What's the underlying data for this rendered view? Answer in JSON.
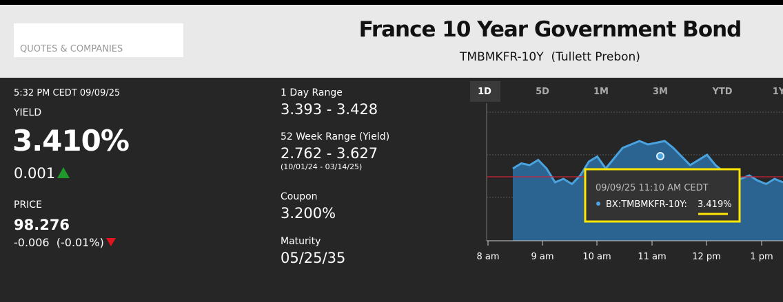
{
  "header": {
    "search_placeholder": "QUOTES & COMPANIES",
    "title": "France 10 Year Government Bond",
    "symbol": "TMBMKFR-10Y",
    "source": "(Tullett Prebon)"
  },
  "quote": {
    "timestamp": "5:32 PM CEDT 09/09/25",
    "yield_label": "YIELD",
    "yield": "3.410%",
    "yield_change": "0.001",
    "price_label": "PRICE",
    "price": "98.276",
    "price_change": "-0.006",
    "price_change_pct": "(-0.01%)"
  },
  "stats": [
    {
      "label": "1 Day Range",
      "value": "3.393 - 3.428"
    },
    {
      "label": "52 Week Range (Yield)",
      "value": "2.762 - 3.627",
      "note": "(10/01/24 - 03/14/25)"
    },
    {
      "label": "Coupon",
      "value": "3.200%"
    },
    {
      "label": "Maturity",
      "value": "05/25/35"
    }
  ],
  "chart": {
    "tabs": [
      "1D",
      "5D",
      "1M",
      "3M",
      "YTD",
      "1Y"
    ],
    "x_labels": [
      "8 am",
      "9 am",
      "10 am",
      "11 am",
      "12 pm",
      "1 pm"
    ],
    "ylim": [
      3.37,
      3.45
    ],
    "values": [
      3.412,
      3.415,
      3.414,
      3.417,
      3.412,
      3.404,
      3.406,
      3.403,
      3.408,
      3.416,
      3.419,
      3.412,
      3.418,
      3.424,
      3.426,
      3.428,
      3.426,
      3.427,
      3.428,
      3.424,
      3.419,
      3.414,
      3.417,
      3.42,
      3.414,
      3.41,
      3.408,
      3.406,
      3.408,
      3.405,
      3.403,
      3.406,
      3.404
    ],
    "tooltip": {
      "time": "09/09/25 11:10 AM CEDT",
      "series": "BX:TMBMKFR-10Y:",
      "value": "3.419%"
    }
  }
}
